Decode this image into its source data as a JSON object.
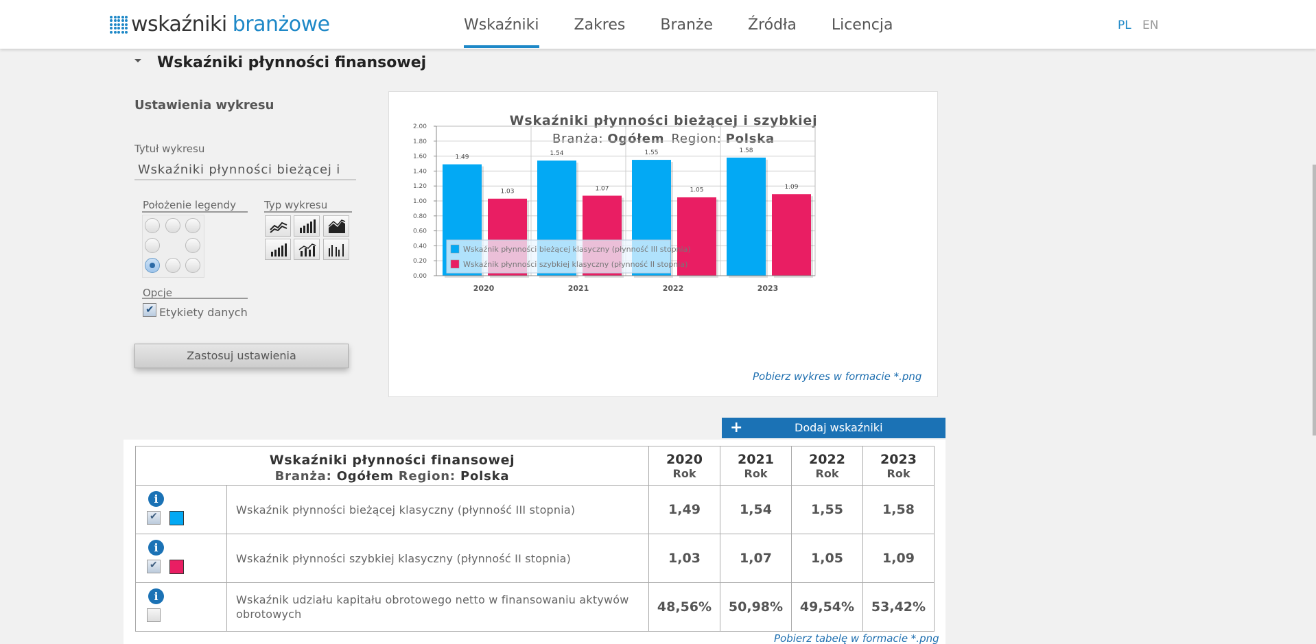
{
  "header": {
    "logo_word1": "wskaźniki",
    "logo_word2": "branżowe",
    "nav": [
      "Wskaźniki",
      "Zakres",
      "Branże",
      "Źródła",
      "Licencja"
    ],
    "active_nav": "Wskaźniki",
    "lang_pl": "PL",
    "lang_en": "EN"
  },
  "section": {
    "title": "Wskaźniki płynności finansowej"
  },
  "settings": {
    "title": "Ustawienia wykresu",
    "chart_title_label": "Tytuł wykresu",
    "chart_title_value": "Wskaźniki płynności bieżącej i",
    "legend_position_label": "Położenie legendy",
    "chart_type_label": "Typ wykresu",
    "chart_types": [
      "line-chart-icon",
      "bar-chart-icon",
      "area-chart-icon",
      "stacked-bar-icon",
      "bar-line-icon",
      "grouped-bar-icon"
    ],
    "legend_selected": "bottom-left",
    "options_label": "Opcje",
    "data_labels_option": "Etykiety danych",
    "data_labels_checked": true,
    "apply_button": "Zastosuj ustawienia"
  },
  "chart_data": {
    "type": "bar",
    "title": "Wskaźniki płynności bieżącej i szybkiej",
    "subtitle_branch_label": "Branża:",
    "subtitle_branch_value": "Ogółem",
    "subtitle_region_label": "Region:",
    "subtitle_region_value": "Polska",
    "categories": [
      "2020",
      "2021",
      "2022",
      "2023"
    ],
    "ylim": [
      0,
      2.0
    ],
    "yticks": [
      "0.00",
      "0.20",
      "0.40",
      "0.60",
      "0.80",
      "1.00",
      "1.20",
      "1.40",
      "1.60",
      "1.80",
      "2.00"
    ],
    "series": [
      {
        "name": "Wskaźnik płynności bieżącej klasyczny (płynność III stopnia)",
        "color": "#03a9f4",
        "values": [
          1.49,
          1.54,
          1.55,
          1.58
        ],
        "labels": [
          "1.49",
          "1.54",
          "1.55",
          "1.58"
        ]
      },
      {
        "name": "Wskaźnik płynności szybkiej klasyczny (płynność II stopnia)",
        "color": "#e91e63",
        "values": [
          1.03,
          1.07,
          1.05,
          1.09
        ],
        "labels": [
          "1.03",
          "1.07",
          "1.05",
          "1.09"
        ]
      }
    ],
    "legend_position": "bottom-left",
    "grid": true
  },
  "download_chart": "Pobierz wykres w formacie *.png",
  "add_button": "Dodaj wskaźniki",
  "table": {
    "title": "Wskaźniki płynności finansowej",
    "branch_label": "Branża:",
    "branch_value": "Ogółem",
    "region_label": "Region:",
    "region_value": "Polska",
    "years": [
      "2020",
      "2021",
      "2022",
      "2023"
    ],
    "period": "Rok",
    "rows": [
      {
        "name": "Wskaźnik płynności bieżącej klasyczny (płynność III stopnia)",
        "checked": true,
        "color": "#03a9f4",
        "values": [
          "1,49",
          "1,54",
          "1,55",
          "1,58"
        ]
      },
      {
        "name": "Wskaźnik płynności szybkiej klasyczny (płynność II stopnia)",
        "checked": true,
        "color": "#e91e63",
        "values": [
          "1,03",
          "1,07",
          "1,05",
          "1,09"
        ]
      },
      {
        "name": "Wskaźnik udziału kapitału obrotowego netto w finansowaniu aktywów obrotowych",
        "checked": false,
        "color": "",
        "values": [
          "48,56%",
          "50,98%",
          "49,54%",
          "53,42%"
        ]
      }
    ]
  },
  "download_table": "Pobierz tabelę w formacie *.png"
}
